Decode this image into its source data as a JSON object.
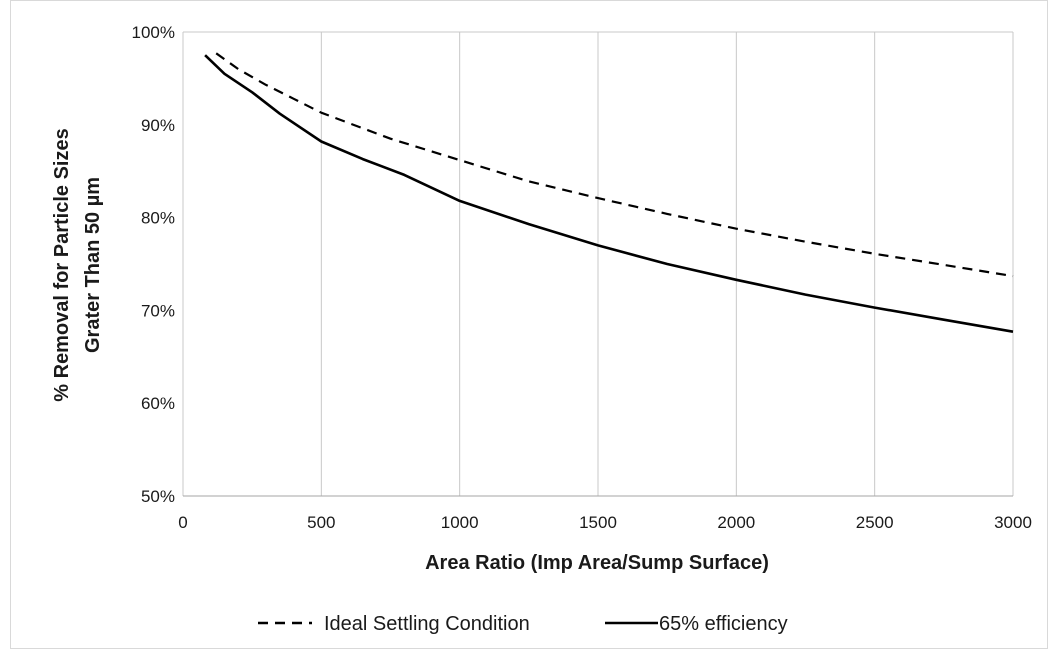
{
  "chart_data": {
    "type": "line",
    "xlabel": "Area Ratio (Imp Area/Sump Surface)",
    "ylabel_line1": "% Removal for Particle Sizes",
    "ylabel_line2": "Grater Than 50 µm",
    "xlim": [
      0,
      3000
    ],
    "ylim": [
      0.5,
      1.0
    ],
    "x_ticks": [
      "0",
      "500",
      "1000",
      "1500",
      "2000",
      "2500",
      "3000"
    ],
    "y_ticks": [
      "50%",
      "60%",
      "70%",
      "80%",
      "90%",
      "100%"
    ],
    "grid": "vertical",
    "legend_position": "bottom",
    "series": [
      {
        "name": "Ideal Settling Condition",
        "style": "dashed",
        "x": [
          120,
          200,
          300,
          400,
          500,
          750,
          1000,
          1250,
          1500,
          1750,
          2000,
          2250,
          2500,
          2750,
          3000
        ],
        "y": [
          0.977,
          0.96,
          0.943,
          0.928,
          0.913,
          0.885,
          0.862,
          0.839,
          0.821,
          0.804,
          0.788,
          0.774,
          0.761,
          0.749,
          0.737
        ]
      },
      {
        "name": "65% efficiency",
        "style": "solid",
        "x": [
          80,
          150,
          250,
          350,
          500,
          650,
          800,
          1000,
          1250,
          1500,
          1750,
          2000,
          2250,
          2500,
          2750,
          3000
        ],
        "y": [
          0.975,
          0.955,
          0.935,
          0.912,
          0.882,
          0.863,
          0.846,
          0.818,
          0.793,
          0.77,
          0.75,
          0.733,
          0.717,
          0.703,
          0.69,
          0.677
        ]
      }
    ],
    "colors": {
      "line": "#000000",
      "grid": "#c8c8c8",
      "text": "#1a1a1a"
    }
  }
}
